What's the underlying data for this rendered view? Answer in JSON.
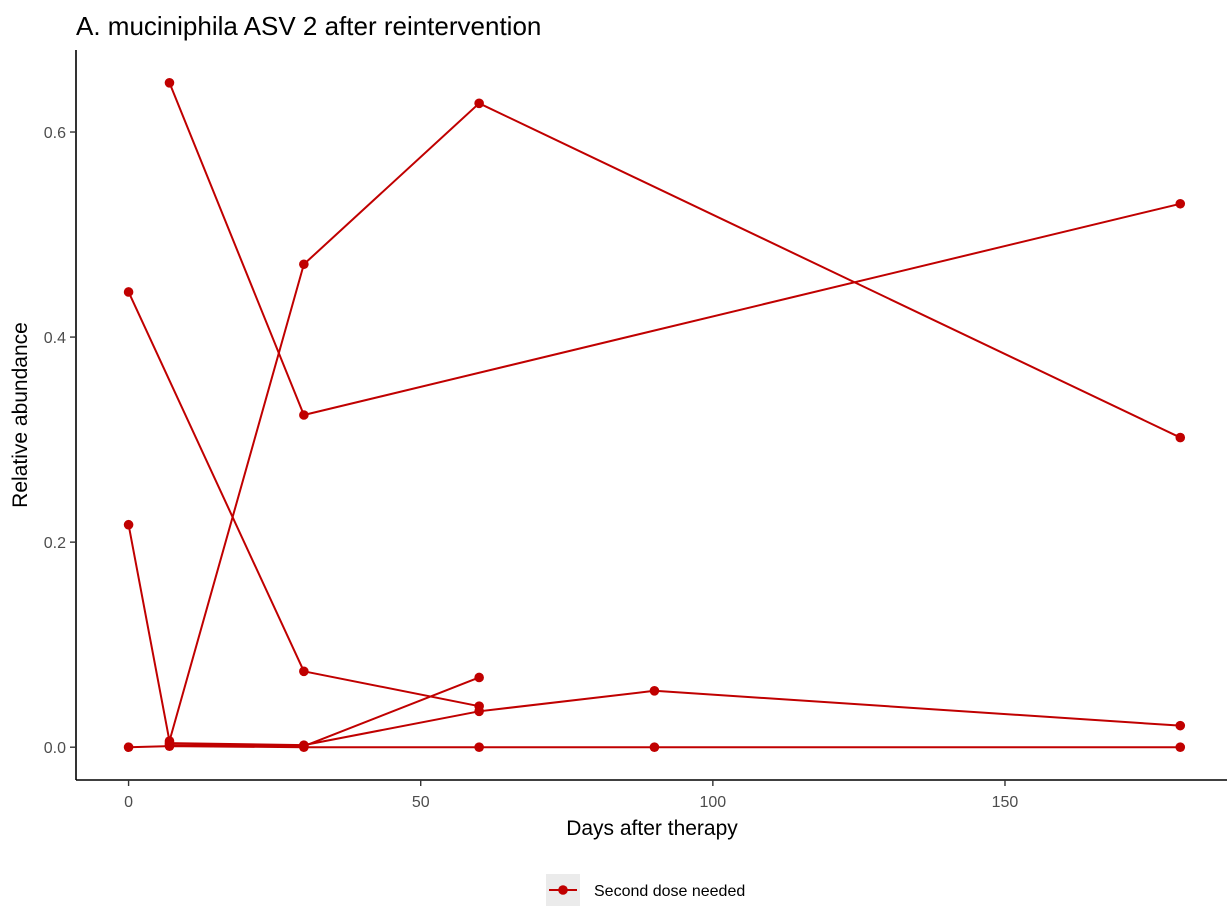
{
  "chart_data": {
    "type": "line",
    "title": "A. muciniphila ASV 2 after reintervention",
    "xlabel": "Days after therapy",
    "ylabel": "Relative abundance",
    "xlim": [
      -9,
      188
    ],
    "ylim": [
      -0.032,
      0.68
    ],
    "x_ticks": [
      0,
      50,
      100,
      150
    ],
    "x_tick_labels": [
      "0",
      "50",
      "100",
      "150"
    ],
    "y_ticks": [
      0,
      0.2,
      0.4,
      0.6
    ],
    "y_tick_labels": [
      "0.0",
      "0.2",
      "0.4",
      "0.6"
    ],
    "grid": false,
    "legend_position": "bottom",
    "color": "#c00000",
    "series": [
      {
        "name": "Second dose needed",
        "points": [
          [
            7,
            0.648
          ],
          [
            30,
            0.324
          ],
          [
            180,
            0.53
          ]
        ]
      },
      {
        "name": "Second dose needed",
        "points": [
          [
            0,
            0.444
          ],
          [
            30,
            0.074
          ],
          [
            60,
            0.04
          ]
        ]
      },
      {
        "name": "Second dose needed",
        "points": [
          [
            0,
            0.217
          ],
          [
            7,
            0.006
          ],
          [
            30,
            0.471
          ],
          [
            60,
            0.628
          ],
          [
            180,
            0.302
          ]
        ]
      },
      {
        "name": "Second dose needed",
        "points": [
          [
            7,
            0.004
          ],
          [
            30,
            0.002
          ],
          [
            60,
            0.035
          ],
          [
            90,
            0.055
          ],
          [
            180,
            0.021
          ]
        ]
      },
      {
        "name": "Second dose needed",
        "points": [
          [
            7,
            0.002
          ],
          [
            30,
            0.001
          ],
          [
            60,
            0.068
          ]
        ]
      },
      {
        "name": "Second dose needed",
        "points": [
          [
            0,
            0.0
          ],
          [
            7,
            0.001
          ],
          [
            30,
            0.0
          ],
          [
            60,
            0.0
          ],
          [
            90,
            0.0
          ],
          [
            180,
            0.0
          ]
        ]
      }
    ]
  },
  "legend": {
    "label": "Second dose needed"
  }
}
